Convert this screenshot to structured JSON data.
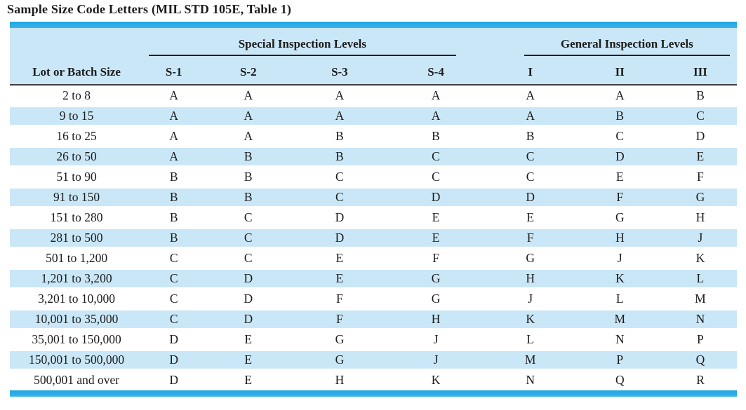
{
  "title": "Sample Size Code Letters (MIL STD 105E, Table 1)",
  "colors": {
    "accent_bar": "#1ea6e1",
    "accent_bar_light": "#3db4e9",
    "row_band": "#cae7f7",
    "text": "#1c1c1c"
  },
  "table": {
    "group_headers": [
      {
        "label": "Special Inspection Levels",
        "span": 4
      },
      {
        "label": "General Inspection Levels",
        "span": 3
      }
    ],
    "columns": [
      "Lot or Batch Size",
      "S-1",
      "S-2",
      "S-3",
      "S-4",
      "I",
      "II",
      "III"
    ],
    "rows": [
      [
        "2 to 8",
        "A",
        "A",
        "A",
        "A",
        "A",
        "A",
        "B"
      ],
      [
        "9 to 15",
        "A",
        "A",
        "A",
        "A",
        "A",
        "B",
        "C"
      ],
      [
        "16 to 25",
        "A",
        "A",
        "B",
        "B",
        "B",
        "C",
        "D"
      ],
      [
        "26 to 50",
        "A",
        "B",
        "B",
        "C",
        "C",
        "D",
        "E"
      ],
      [
        "51 to 90",
        "B",
        "B",
        "C",
        "C",
        "C",
        "E",
        "F"
      ],
      [
        "91 to 150",
        "B",
        "B",
        "C",
        "D",
        "D",
        "F",
        "G"
      ],
      [
        "151 to 280",
        "B",
        "C",
        "D",
        "E",
        "E",
        "G",
        "H"
      ],
      [
        "281 to 500",
        "B",
        "C",
        "D",
        "E",
        "F",
        "H",
        "J"
      ],
      [
        "501 to 1,200",
        "C",
        "C",
        "E",
        "F",
        "G",
        "J",
        "K"
      ],
      [
        "1,201 to 3,200",
        "C",
        "D",
        "E",
        "G",
        "H",
        "K",
        "L"
      ],
      [
        "3,201 to 10,000",
        "C",
        "D",
        "F",
        "G",
        "J",
        "L",
        "M"
      ],
      [
        "10,001 to 35,000",
        "C",
        "D",
        "F",
        "H",
        "K",
        "M",
        "N"
      ],
      [
        "35,001 to 150,000",
        "D",
        "E",
        "G",
        "J",
        "L",
        "N",
        "P"
      ],
      [
        "150,001 to 500,000",
        "D",
        "E",
        "G",
        "J",
        "M",
        "P",
        "Q"
      ],
      [
        "500,001 and over",
        "D",
        "E",
        "H",
        "K",
        "N",
        "Q",
        "R"
      ]
    ]
  }
}
